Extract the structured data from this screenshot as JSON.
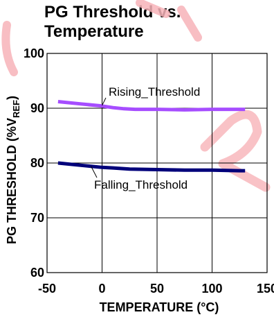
{
  "title_lines": [
    "PG Threshold vs.",
    "Temperature"
  ],
  "watermark_color": "#f7b3b8",
  "chart_data": {
    "type": "line",
    "xlabel": "TEMPERATURE (°C)",
    "ylabel": {
      "main": "PG THRESHOLD (%V",
      "subscript": "REF",
      "close": ")"
    },
    "xlim": [
      -50,
      150
    ],
    "ylim": [
      60,
      100
    ],
    "xticks": [
      -50,
      0,
      50,
      100,
      150
    ],
    "yticks": [
      60,
      70,
      80,
      90,
      100
    ],
    "grid": true,
    "series": [
      {
        "name": "Rising_Threshold",
        "color": "#a64dff",
        "x": [
          -40,
          -20,
          0,
          10,
          20,
          30,
          50,
          75,
          100,
          125,
          130
        ],
        "y": [
          91.2,
          90.8,
          90.4,
          90.1,
          89.9,
          89.8,
          89.8,
          89.7,
          89.8,
          89.8,
          89.8
        ]
      },
      {
        "name": "Falling_Threshold",
        "color": "#00007a",
        "x": [
          -40,
          -20,
          -10,
          0,
          10,
          25,
          50,
          75,
          100,
          125,
          130
        ],
        "y": [
          80.0,
          79.6,
          79.4,
          79.2,
          79.1,
          78.9,
          78.8,
          78.7,
          78.7,
          78.6,
          78.6
        ]
      }
    ]
  }
}
